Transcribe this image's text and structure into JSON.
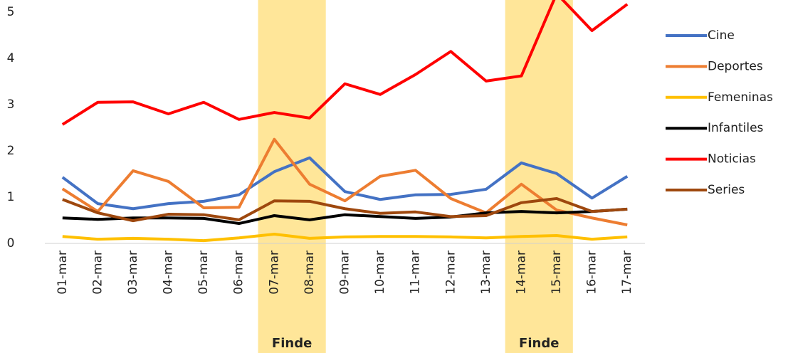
{
  "chart_data": {
    "type": "line",
    "categories": [
      "01-mar",
      "02-mar",
      "03-mar",
      "04-mar",
      "05-mar",
      "06-mar",
      "07-mar",
      "08-mar",
      "09-mar",
      "10-mar",
      "11-mar",
      "12-mar",
      "13-mar",
      "14-mar",
      "15-mar",
      "16-mar",
      "17-mar"
    ],
    "series": [
      {
        "name": "Cine",
        "color": "#4472c4",
        "values": [
          1.43,
          0.86,
          0.75,
          0.86,
          0.91,
          1.05,
          1.55,
          1.85,
          1.12,
          0.95,
          1.05,
          1.06,
          1.17,
          1.74,
          1.51,
          0.98,
          1.45
        ]
      },
      {
        "name": "Deportes",
        "color": "#ed7d31",
        "values": [
          1.18,
          0.69,
          1.57,
          1.34,
          0.77,
          0.78,
          2.25,
          1.28,
          0.92,
          1.45,
          1.58,
          0.97,
          0.66,
          1.28,
          0.72,
          0.55,
          0.4
        ]
      },
      {
        "name": "Femeninas",
        "color": "#ffc000",
        "values": [
          0.15,
          0.09,
          0.11,
          0.09,
          0.06,
          0.12,
          0.2,
          0.11,
          0.14,
          0.15,
          0.15,
          0.14,
          0.12,
          0.15,
          0.17,
          0.09,
          0.14
        ]
      },
      {
        "name": "Infantiles",
        "color": "#000000",
        "values": [
          0.55,
          0.52,
          0.55,
          0.55,
          0.54,
          0.43,
          0.6,
          0.51,
          0.62,
          0.58,
          0.54,
          0.57,
          0.66,
          0.69,
          0.66,
          0.69,
          0.74
        ]
      },
      {
        "name": "Noticias",
        "color": "#ff0000",
        "values": [
          2.57,
          3.05,
          3.06,
          2.8,
          3.05,
          2.68,
          2.83,
          2.71,
          3.45,
          3.22,
          3.65,
          4.15,
          3.51,
          3.62,
          5.4,
          4.6,
          5.17
        ]
      },
      {
        "name": "Series",
        "color": "#9e480e",
        "values": [
          0.95,
          0.66,
          0.49,
          0.63,
          0.62,
          0.51,
          0.92,
          0.91,
          0.75,
          0.65,
          0.68,
          0.58,
          0.6,
          0.88,
          0.97,
          0.69,
          0.74
        ]
      }
    ],
    "ylim": [
      0,
      5.25
    ],
    "yticks": [
      0,
      1,
      2,
      3,
      4,
      5
    ],
    "grid": false,
    "legend": "right",
    "highlights": [
      {
        "label": "Finde",
        "from": "07-mar",
        "to": "08-mar",
        "color": "#ffe699"
      },
      {
        "label": "Finde",
        "from": "14-mar",
        "to": "15-mar",
        "color": "#ffe699"
      }
    ]
  }
}
